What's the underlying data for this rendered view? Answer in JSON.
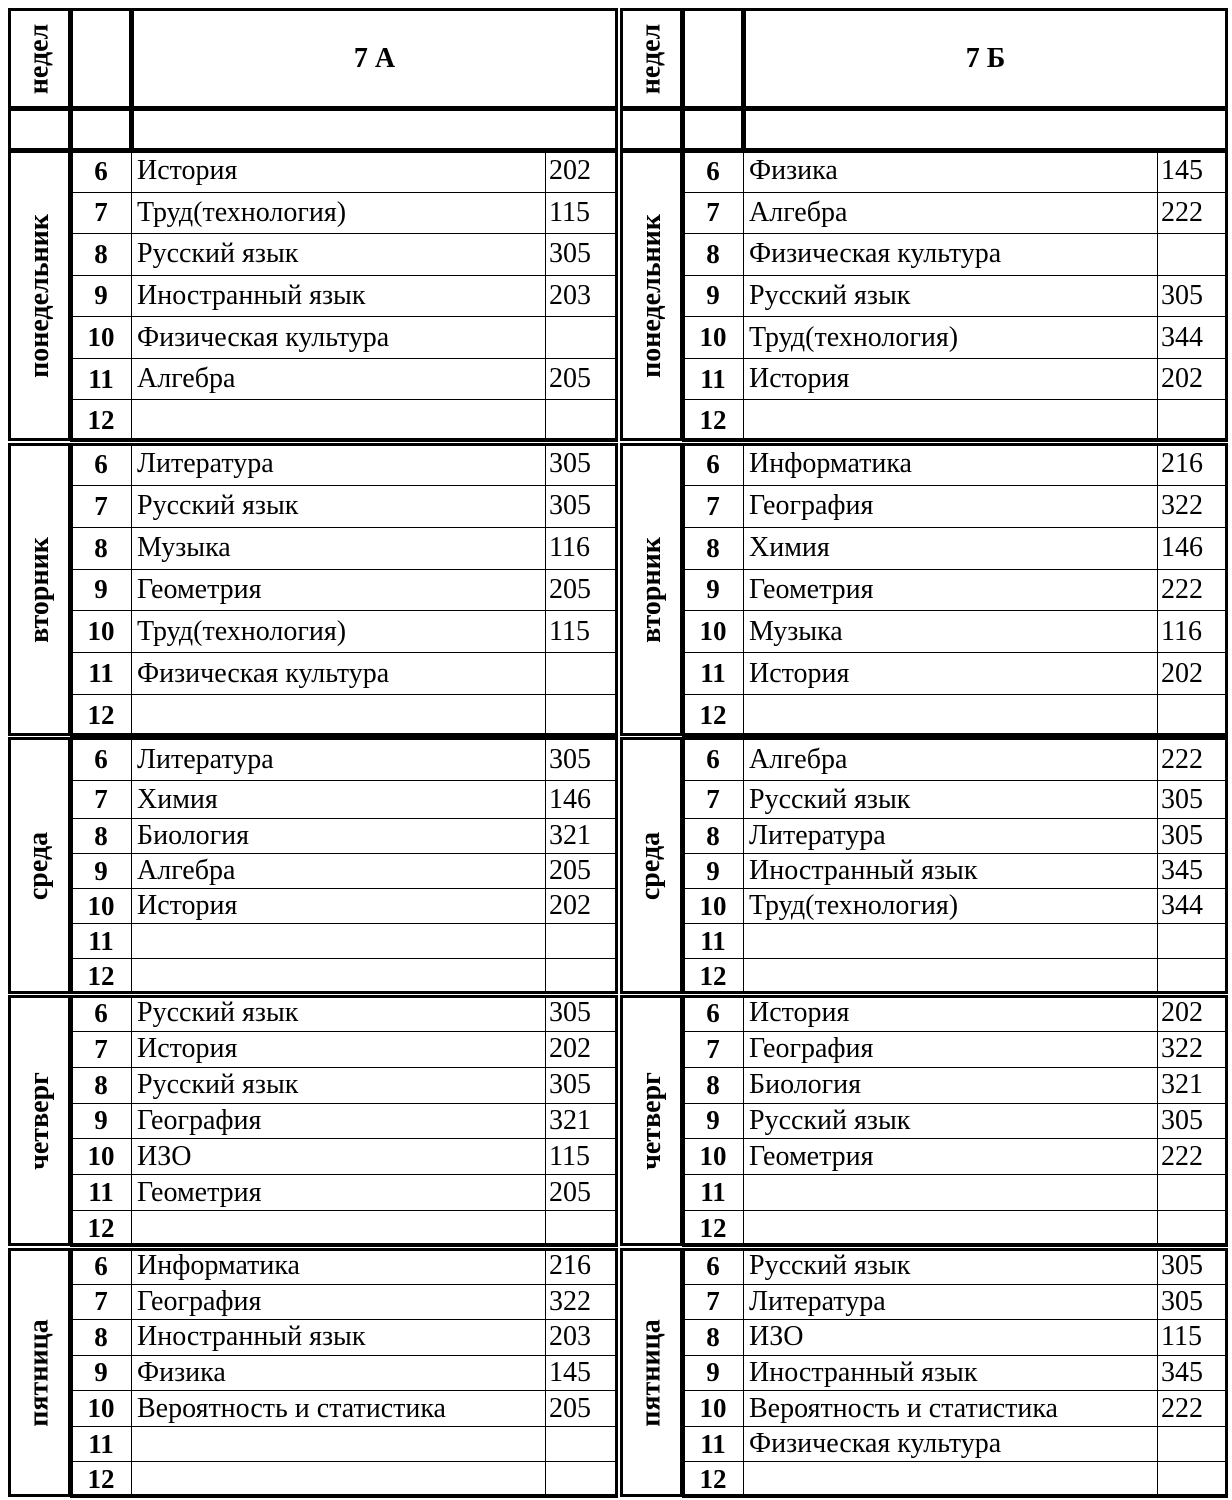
{
  "header_label": "недел",
  "classes": [
    {
      "name": "7 А",
      "days": [
        {
          "day": "понедельник",
          "lessons": [
            [
              "6",
              "История",
              "202"
            ],
            [
              "7",
              "Труд(технология)",
              "115"
            ],
            [
              "8",
              "Русский язык",
              "305"
            ],
            [
              "9",
              "Иностранный язык",
              "203"
            ],
            [
              "10",
              "Физическая культура",
              ""
            ],
            [
              "11",
              "Алгебра",
              "205"
            ],
            [
              "12",
              "",
              ""
            ]
          ]
        },
        {
          "day": "вторник",
          "lessons": [
            [
              "6",
              "Литература",
              "305"
            ],
            [
              "7",
              "Русский язык",
              "305"
            ],
            [
              "8",
              "Музыка",
              "116"
            ],
            [
              "9",
              "Геометрия",
              "205"
            ],
            [
              "10",
              "Труд(технология)",
              "115"
            ],
            [
              "11",
              "Физическая культура",
              ""
            ],
            [
              "12",
              "",
              ""
            ]
          ]
        },
        {
          "day": "среда",
          "lessons": [
            [
              "6",
              "Литература",
              "305"
            ],
            [
              "7",
              "Химия",
              "146"
            ],
            [
              "8",
              "Биология",
              "321"
            ],
            [
              "9",
              "Алгебра",
              "205"
            ],
            [
              "10",
              "История",
              "202"
            ],
            [
              "11",
              "",
              ""
            ],
            [
              "12",
              "",
              ""
            ]
          ]
        },
        {
          "day": "четверг",
          "lessons": [
            [
              "6",
              "Русский язык",
              "305"
            ],
            [
              "7",
              "История",
              "202"
            ],
            [
              "8",
              "Русский язык",
              "305"
            ],
            [
              "9",
              "География",
              "321"
            ],
            [
              "10",
              "ИЗО",
              "115"
            ],
            [
              "11",
              "Геометрия",
              "205"
            ],
            [
              "12",
              "",
              ""
            ]
          ]
        },
        {
          "day": "пятница",
          "lessons": [
            [
              "6",
              "Информатика",
              "216"
            ],
            [
              "7",
              "География",
              "322"
            ],
            [
              "8",
              "Иностранный язык",
              "203"
            ],
            [
              "9",
              "Физика",
              "145"
            ],
            [
              "10",
              "Вероятность и статистика",
              "205"
            ],
            [
              "11",
              "",
              ""
            ],
            [
              "12",
              "",
              ""
            ]
          ]
        }
      ]
    },
    {
      "name": "7 Б",
      "days": [
        {
          "day": "понедельник",
          "lessons": [
            [
              "6",
              "Физика",
              "145"
            ],
            [
              "7",
              "Алгебра",
              "222"
            ],
            [
              "8",
              "Физическая культура",
              ""
            ],
            [
              "9",
              "Русский язык",
              "305"
            ],
            [
              "10",
              "Труд(технология)",
              "344"
            ],
            [
              "11",
              "История",
              "202"
            ],
            [
              "12",
              "",
              ""
            ]
          ]
        },
        {
          "day": "вторник",
          "lessons": [
            [
              "6",
              "Информатика",
              "216"
            ],
            [
              "7",
              "География",
              "322"
            ],
            [
              "8",
              "Химия",
              "146"
            ],
            [
              "9",
              "Геометрия",
              "222"
            ],
            [
              "10",
              "Музыка",
              "116"
            ],
            [
              "11",
              "История",
              "202"
            ],
            [
              "12",
              "",
              ""
            ]
          ]
        },
        {
          "day": "среда",
          "lessons": [
            [
              "6",
              "Алгебра",
              "222"
            ],
            [
              "7",
              "Русский язык",
              "305"
            ],
            [
              "8",
              "Литература",
              "305"
            ],
            [
              "9",
              "Иностранный язык",
              "345"
            ],
            [
              "10",
              "Труд(технология)",
              "344"
            ],
            [
              "11",
              "",
              ""
            ],
            [
              "12",
              "",
              ""
            ]
          ]
        },
        {
          "day": "четверг",
          "lessons": [
            [
              "6",
              "История",
              "202"
            ],
            [
              "7",
              "География",
              "322"
            ],
            [
              "8",
              "Биология",
              "321"
            ],
            [
              "9",
              "Русский язык",
              "305"
            ],
            [
              "10",
              " Геометрия",
              "222"
            ],
            [
              "11",
              "",
              ""
            ],
            [
              "12",
              "",
              ""
            ]
          ]
        },
        {
          "day": "пятница",
          "lessons": [
            [
              "6",
              "Русский язык",
              "305"
            ],
            [
              "7",
              "Литература",
              "305"
            ],
            [
              "8",
              "ИЗО",
              "115"
            ],
            [
              "9",
              "Иностранный язык",
              "345"
            ],
            [
              "10",
              "Вероятность и статистика",
              "222"
            ],
            [
              "11",
              "Физическая культура",
              ""
            ],
            [
              "12",
              "",
              ""
            ]
          ]
        }
      ]
    }
  ]
}
